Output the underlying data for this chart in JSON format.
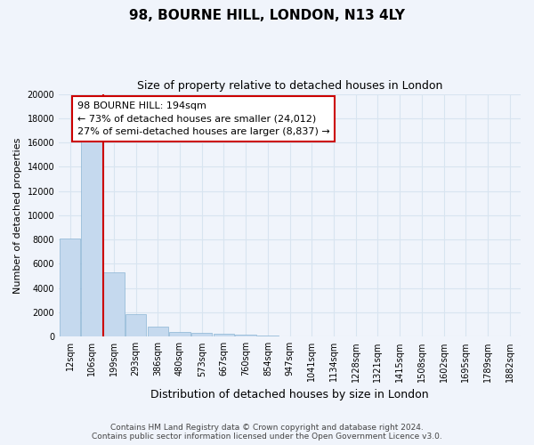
{
  "title": "98, BOURNE HILL, LONDON, N13 4LY",
  "subtitle": "Size of property relative to detached houses in London",
  "xlabel": "Distribution of detached houses by size in London",
  "ylabel": "Number of detached properties",
  "categories": [
    "12sqm",
    "106sqm",
    "199sqm",
    "293sqm",
    "386sqm",
    "480sqm",
    "573sqm",
    "667sqm",
    "760sqm",
    "854sqm",
    "947sqm",
    "1041sqm",
    "1134sqm",
    "1228sqm",
    "1321sqm",
    "1415sqm",
    "1508sqm",
    "1602sqm",
    "1695sqm",
    "1789sqm",
    "1882sqm"
  ],
  "values": [
    8100,
    16600,
    5300,
    1850,
    800,
    370,
    290,
    230,
    170,
    130,
    0,
    0,
    0,
    0,
    0,
    0,
    0,
    0,
    0,
    0,
    0
  ],
  "bar_color": "#c5d9ee",
  "bar_edge_color": "#8ab4d4",
  "vline_x": 1.5,
  "vline_color": "#cc0000",
  "annotation_text": "98 BOURNE HILL: 194sqm\n← 73% of detached houses are smaller (24,012)\n27% of semi-detached houses are larger (8,837) →",
  "annotation_box_facecolor": "#ffffff",
  "annotation_border_color": "#cc0000",
  "ylim": [
    0,
    20000
  ],
  "yticks": [
    0,
    2000,
    4000,
    6000,
    8000,
    10000,
    12000,
    14000,
    16000,
    18000,
    20000
  ],
  "footer_line1": "Contains HM Land Registry data © Crown copyright and database right 2024.",
  "footer_line2": "Contains public sector information licensed under the Open Government Licence v3.0.",
  "bg_color": "#f0f4fb",
  "grid_color": "#d8e4f0",
  "title_fontsize": 11,
  "subtitle_fontsize": 9,
  "xlabel_fontsize": 9,
  "ylabel_fontsize": 8,
  "tick_fontsize": 7,
  "footer_fontsize": 6.5
}
